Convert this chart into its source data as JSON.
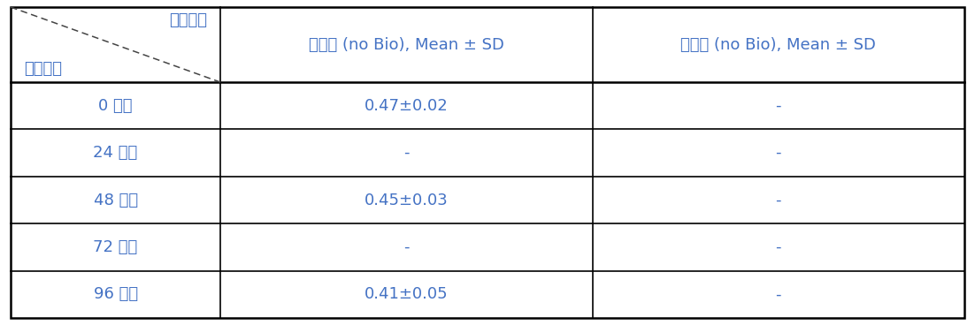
{
  "header_row": [
    "시험항목",
    "지수식 (no Bio), Mean ± SD",
    "유수식 (no Bio), Mean ± SD"
  ],
  "rows": [
    [
      "0 시간",
      "0.47±0.02",
      "-"
    ],
    [
      "24 시간",
      "-",
      "-"
    ],
    [
      "48 시간",
      "0.45±0.03",
      "-"
    ],
    [
      "72 시간",
      "-",
      "-"
    ],
    [
      "96 시간",
      "0.41±0.05",
      "-"
    ]
  ],
  "header_label_top": "시험항목",
  "header_label_bottom": "경과시간",
  "text_color": "#4472c4",
  "line_color": "#000000",
  "background_color": "#ffffff",
  "font_size": 13,
  "header_font_size": 13
}
